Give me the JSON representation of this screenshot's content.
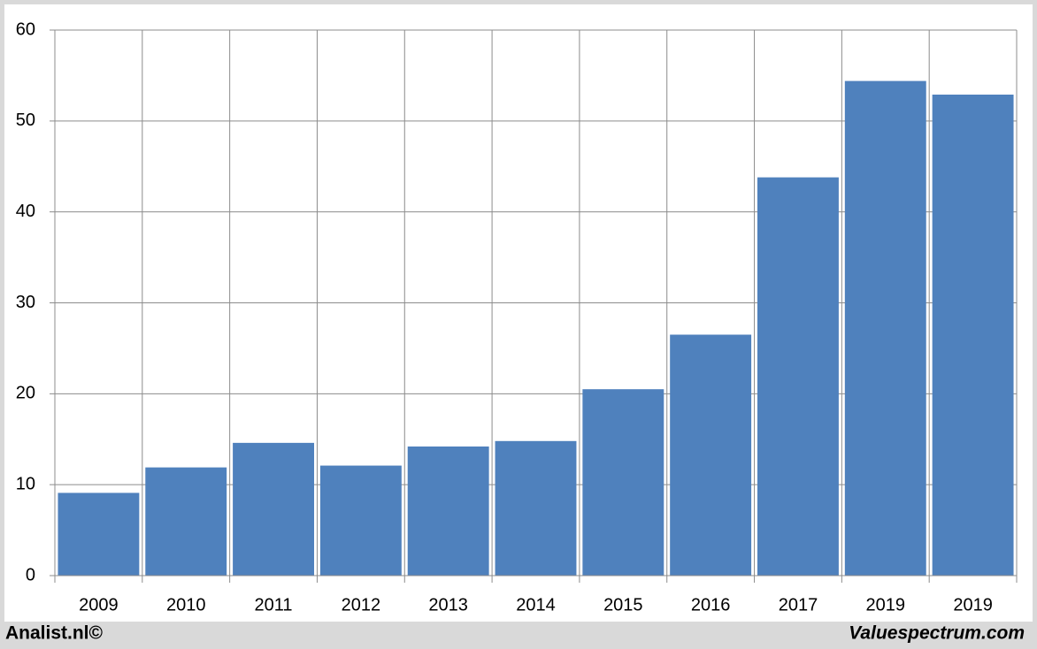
{
  "chart_data": {
    "type": "bar",
    "categories": [
      "2009",
      "2010",
      "2011",
      "2012",
      "2013",
      "2014",
      "2015",
      "2016",
      "2017",
      "2019",
      "2019"
    ],
    "values": [
      9.1,
      11.9,
      14.6,
      12.1,
      14.2,
      14.8,
      20.5,
      26.5,
      43.8,
      54.4,
      52.9
    ],
    "color": "#4f81bd",
    "ylim": [
      0,
      60
    ],
    "yticks": [
      0,
      10,
      20,
      30,
      40,
      50,
      60
    ],
    "grid": true,
    "source_left": "Analist.nl©",
    "source_right": "Valuespectrum.com"
  }
}
